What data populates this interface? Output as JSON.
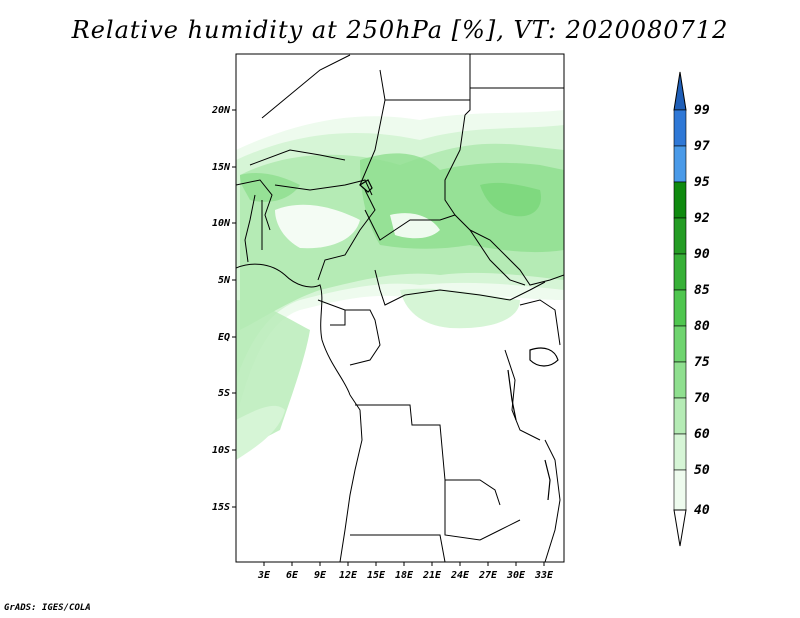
{
  "title": "Relative humidity at 250hPa [%], VT: 2020080712",
  "footer": "GrADS: IGES/COLA",
  "map": {
    "projection": "lat-lon",
    "lon_range": [
      0,
      36
    ],
    "lat_range": [
      -20,
      25
    ],
    "lon_ticks": [
      "3E",
      "6E",
      "9E",
      "12E",
      "15E",
      "18E",
      "21E",
      "24E",
      "27E",
      "30E",
      "33E"
    ],
    "lat_ticks": [
      "20N",
      "15N",
      "10N",
      "5N",
      "EQ",
      "5S",
      "10S",
      "15S"
    ],
    "field": "relative humidity 250hPa"
  },
  "colorbar": {
    "levels": [
      "99",
      "97",
      "95",
      "92",
      "90",
      "85",
      "80",
      "75",
      "70",
      "60",
      "50",
      "40"
    ],
    "colors": [
      "#1f5fb8",
      "#2f78d6",
      "#4a9ae8",
      "#0f8a0f",
      "#249c24",
      "#37b037",
      "#4fc64f",
      "#6fd46f",
      "#8fdf8f",
      "#b5ebb5",
      "#d6f5d6",
      "#eefbee"
    ]
  }
}
